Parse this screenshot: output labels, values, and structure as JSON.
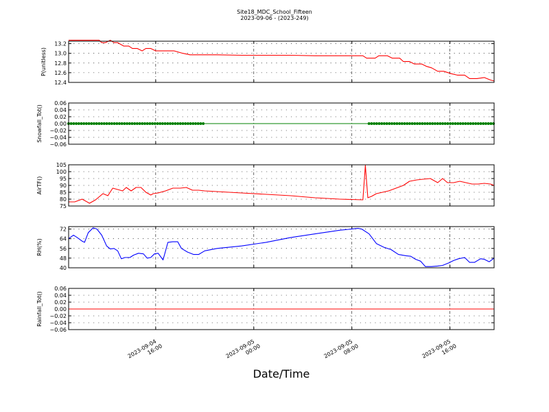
{
  "title": "Site18_MDC_School_Fifteen",
  "subtitle": "2023-09-06 - (2023-249)",
  "xlabel": "Date/Time",
  "x_ticks": [
    {
      "t": 16.0,
      "line1": "2023-09-04",
      "line2": "16:00"
    },
    {
      "t": 24.0,
      "line1": "2023-09-05",
      "line2": "00:00"
    },
    {
      "t": 32.0,
      "line1": "2023-09-05",
      "line2": "08:00"
    },
    {
      "t": 40.0,
      "line1": "2023-09-05",
      "line2": "16:00"
    }
  ],
  "chart_data": [
    {
      "type": "line",
      "ylabel": "P(unitless)",
      "color": "#ff0000",
      "marker": "none",
      "ylim": [
        12.4,
        13.25
      ],
      "yticks": [
        {
          "v": 12.4,
          "label": "12.4"
        },
        {
          "v": 12.6,
          "label": "12.6"
        },
        {
          "v": 12.8,
          "label": "12.8"
        },
        {
          "v": 13.0,
          "label": "13.0"
        },
        {
          "v": 13.2,
          "label": "13.2"
        }
      ],
      "x": [
        8.9,
        11.4,
        11.6,
        11.9,
        12.3,
        12.6,
        12.9,
        13.4,
        13.8,
        14.1,
        14.5,
        14.9,
        15.2,
        15.6,
        16.0,
        16.4,
        16.9,
        17.5,
        18.2,
        18.8,
        19.2,
        19.9,
        21.0,
        23.0,
        25.0,
        27.0,
        29.0,
        31.0,
        32.9,
        33.2,
        33.9,
        34.2,
        34.9,
        35.3,
        35.9,
        36.2,
        36.7,
        37.1,
        37.7,
        38.1,
        38.5,
        39.0,
        39.5,
        40.1,
        40.6,
        41.2,
        41.6,
        42.2,
        42.8,
        43.3,
        43.6
      ],
      "y": [
        13.27,
        13.27,
        13.22,
        13.22,
        13.27,
        13.22,
        13.22,
        13.15,
        13.15,
        13.1,
        13.1,
        13.05,
        13.1,
        13.1,
        13.05,
        13.05,
        13.05,
        13.05,
        13.0,
        12.97,
        12.97,
        12.97,
        12.97,
        12.96,
        12.96,
        12.96,
        12.95,
        12.95,
        12.95,
        12.9,
        12.9,
        12.95,
        12.95,
        12.9,
        12.9,
        12.83,
        12.83,
        12.78,
        12.78,
        12.73,
        12.7,
        12.63,
        12.63,
        12.58,
        12.55,
        12.55,
        12.48,
        12.48,
        12.5,
        12.45,
        12.43
      ]
    },
    {
      "type": "scatter",
      "ylabel": "Snowfall_Tot()",
      "color": "#008000",
      "marker": "circle",
      "ylim": [
        -0.06,
        0.06
      ],
      "yticks": [
        {
          "v": -0.06,
          "label": "−0.06"
        },
        {
          "v": -0.04,
          "label": "−0.04"
        },
        {
          "v": -0.02,
          "label": "−0.02"
        },
        {
          "v": 0.0,
          "label": "0.00"
        },
        {
          "v": 0.02,
          "label": "0.02"
        },
        {
          "v": 0.04,
          "label": "0.04"
        },
        {
          "v": 0.06,
          "label": "0.06"
        }
      ],
      "line_through": true,
      "x_range": [
        8.9,
        43.6
      ],
      "segments": [
        [
          8.9,
          19.9
        ],
        [
          33.4,
          43.6
        ]
      ],
      "y_value": 0.0
    },
    {
      "type": "line",
      "ylabel": "AirTF()",
      "color": "#ff0000",
      "marker": "none",
      "ylim": [
        75,
        105
      ],
      "yticks": [
        {
          "v": 75,
          "label": "75"
        },
        {
          "v": 80,
          "label": "80"
        },
        {
          "v": 85,
          "label": "85"
        },
        {
          "v": 90,
          "label": "90"
        },
        {
          "v": 95,
          "label": "95"
        },
        {
          "v": 100,
          "label": "100"
        },
        {
          "v": 105,
          "label": "105"
        }
      ],
      "x": [
        8.9,
        9.4,
        10.0,
        10.6,
        11.1,
        11.7,
        12.1,
        12.5,
        12.9,
        13.3,
        13.6,
        14.0,
        14.4,
        14.8,
        15.2,
        15.6,
        15.8,
        16.2,
        16.8,
        17.4,
        18.0,
        18.5,
        19.0,
        19.5,
        20.0,
        21.0,
        23.0,
        25.0,
        27.0,
        29.0,
        31.0,
        32.9,
        33.1,
        33.3,
        33.6,
        34.0,
        34.5,
        35.0,
        35.6,
        36.2,
        36.7,
        37.3,
        37.8,
        38.4,
        39.0,
        39.4,
        39.8,
        40.3,
        40.8,
        41.3,
        41.8,
        42.3,
        42.8,
        43.3,
        43.6
      ],
      "y": [
        78,
        78,
        80,
        77,
        79.5,
        84,
        82.5,
        88,
        87,
        86,
        88.5,
        86,
        88.5,
        88.5,
        85,
        83,
        84,
        84.5,
        86,
        88,
        88,
        88.5,
        86.5,
        86.5,
        86,
        85.5,
        84.5,
        83.5,
        82.5,
        81,
        80,
        79.5,
        104.5,
        81,
        82,
        84,
        85,
        86,
        88,
        90,
        93,
        94,
        94.5,
        95,
        92,
        95,
        92,
        92,
        93,
        92,
        91,
        91,
        91.5,
        91,
        90
      ]
    },
    {
      "type": "line",
      "ylabel": "RH(%)",
      "color": "#0000ff",
      "marker": "none",
      "ylim": [
        40,
        74
      ],
      "yticks": [
        {
          "v": 40,
          "label": "40"
        },
        {
          "v": 48,
          "label": "48"
        },
        {
          "v": 56,
          "label": "56"
        },
        {
          "v": 64,
          "label": "64"
        },
        {
          "v": 72,
          "label": "72"
        }
      ],
      "x": [
        8.9,
        9.3,
        9.6,
        10.0,
        10.2,
        10.5,
        10.9,
        11.2,
        11.6,
        12.0,
        12.3,
        12.6,
        12.9,
        13.2,
        13.5,
        13.9,
        14.2,
        14.6,
        15.0,
        15.3,
        15.6,
        15.9,
        16.2,
        16.6,
        17.0,
        17.4,
        17.8,
        18.1,
        18.6,
        19.1,
        19.5,
        20.0,
        21.0,
        23.0,
        25.0,
        27.0,
        29.0,
        31.0,
        32.5,
        32.8,
        33.4,
        34.0,
        34.6,
        35.2,
        35.8,
        36.4,
        36.8,
        37.2,
        37.6,
        38.0,
        38.5,
        39.0,
        39.4,
        39.9,
        40.3,
        40.7,
        41.2,
        41.6,
        42.0,
        42.5,
        42.8,
        43.2,
        43.6
      ],
      "y": [
        64,
        67,
        65,
        62,
        61,
        69,
        73,
        72,
        67,
        58,
        55.5,
        56,
        54,
        47.5,
        48.5,
        48.5,
        50.5,
        52,
        51.5,
        48,
        48.5,
        51.5,
        52,
        46.5,
        61,
        61.5,
        61.5,
        56,
        53,
        51,
        51,
        54,
        56,
        58,
        61,
        65,
        68,
        71,
        72.5,
        72,
        68,
        60,
        57,
        55,
        51,
        50,
        49.5,
        47,
        45.5,
        41,
        41,
        41.5,
        42,
        44,
        46,
        47.5,
        48.5,
        44.5,
        44.5,
        47.5,
        47,
        45,
        48
      ]
    },
    {
      "type": "line",
      "ylabel": "Rainfall_Tot()",
      "color": "#ff0000",
      "marker": "none",
      "ylim": [
        -0.06,
        0.06
      ],
      "yticks": [
        {
          "v": -0.06,
          "label": "−0.06"
        },
        {
          "v": -0.04,
          "label": "−0.04"
        },
        {
          "v": -0.02,
          "label": "−0.02"
        },
        {
          "v": 0.0,
          "label": "0.00"
        },
        {
          "v": 0.02,
          "label": "0.02"
        },
        {
          "v": 0.04,
          "label": "0.04"
        },
        {
          "v": 0.06,
          "label": "0.06"
        }
      ],
      "x": [
        8.9,
        43.6
      ],
      "y": [
        0.0,
        0.0
      ]
    }
  ]
}
